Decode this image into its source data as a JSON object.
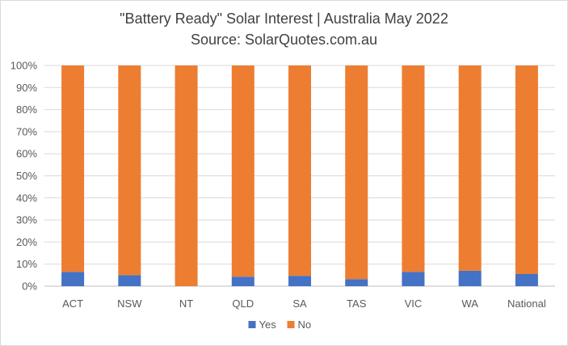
{
  "chart_data": {
    "type": "bar",
    "stacked": true,
    "title": "\"Battery Ready\" Solar Interest  | Australia May 2022",
    "subtitle": "Source: SolarQuotes.com.au",
    "categories": [
      "ACT",
      "NSW",
      "NT",
      "QLD",
      "SA",
      "TAS",
      "VIC",
      "WA",
      "National"
    ],
    "series": [
      {
        "name": "Yes",
        "color": "#4472c4",
        "values": [
          6.5,
          5.0,
          0.0,
          4.3,
          4.7,
          3.2,
          6.5,
          7.0,
          5.5
        ]
      },
      {
        "name": "No",
        "color": "#ed7d31",
        "values": [
          93.5,
          95.0,
          100.0,
          95.7,
          95.3,
          96.8,
          93.5,
          93.0,
          94.5
        ]
      }
    ],
    "ylim": [
      0,
      100
    ],
    "y_ticks": [
      "0%",
      "10%",
      "20%",
      "30%",
      "40%",
      "50%",
      "60%",
      "70%",
      "80%",
      "90%",
      "100%"
    ],
    "grid": true,
    "legend": "bottom"
  }
}
